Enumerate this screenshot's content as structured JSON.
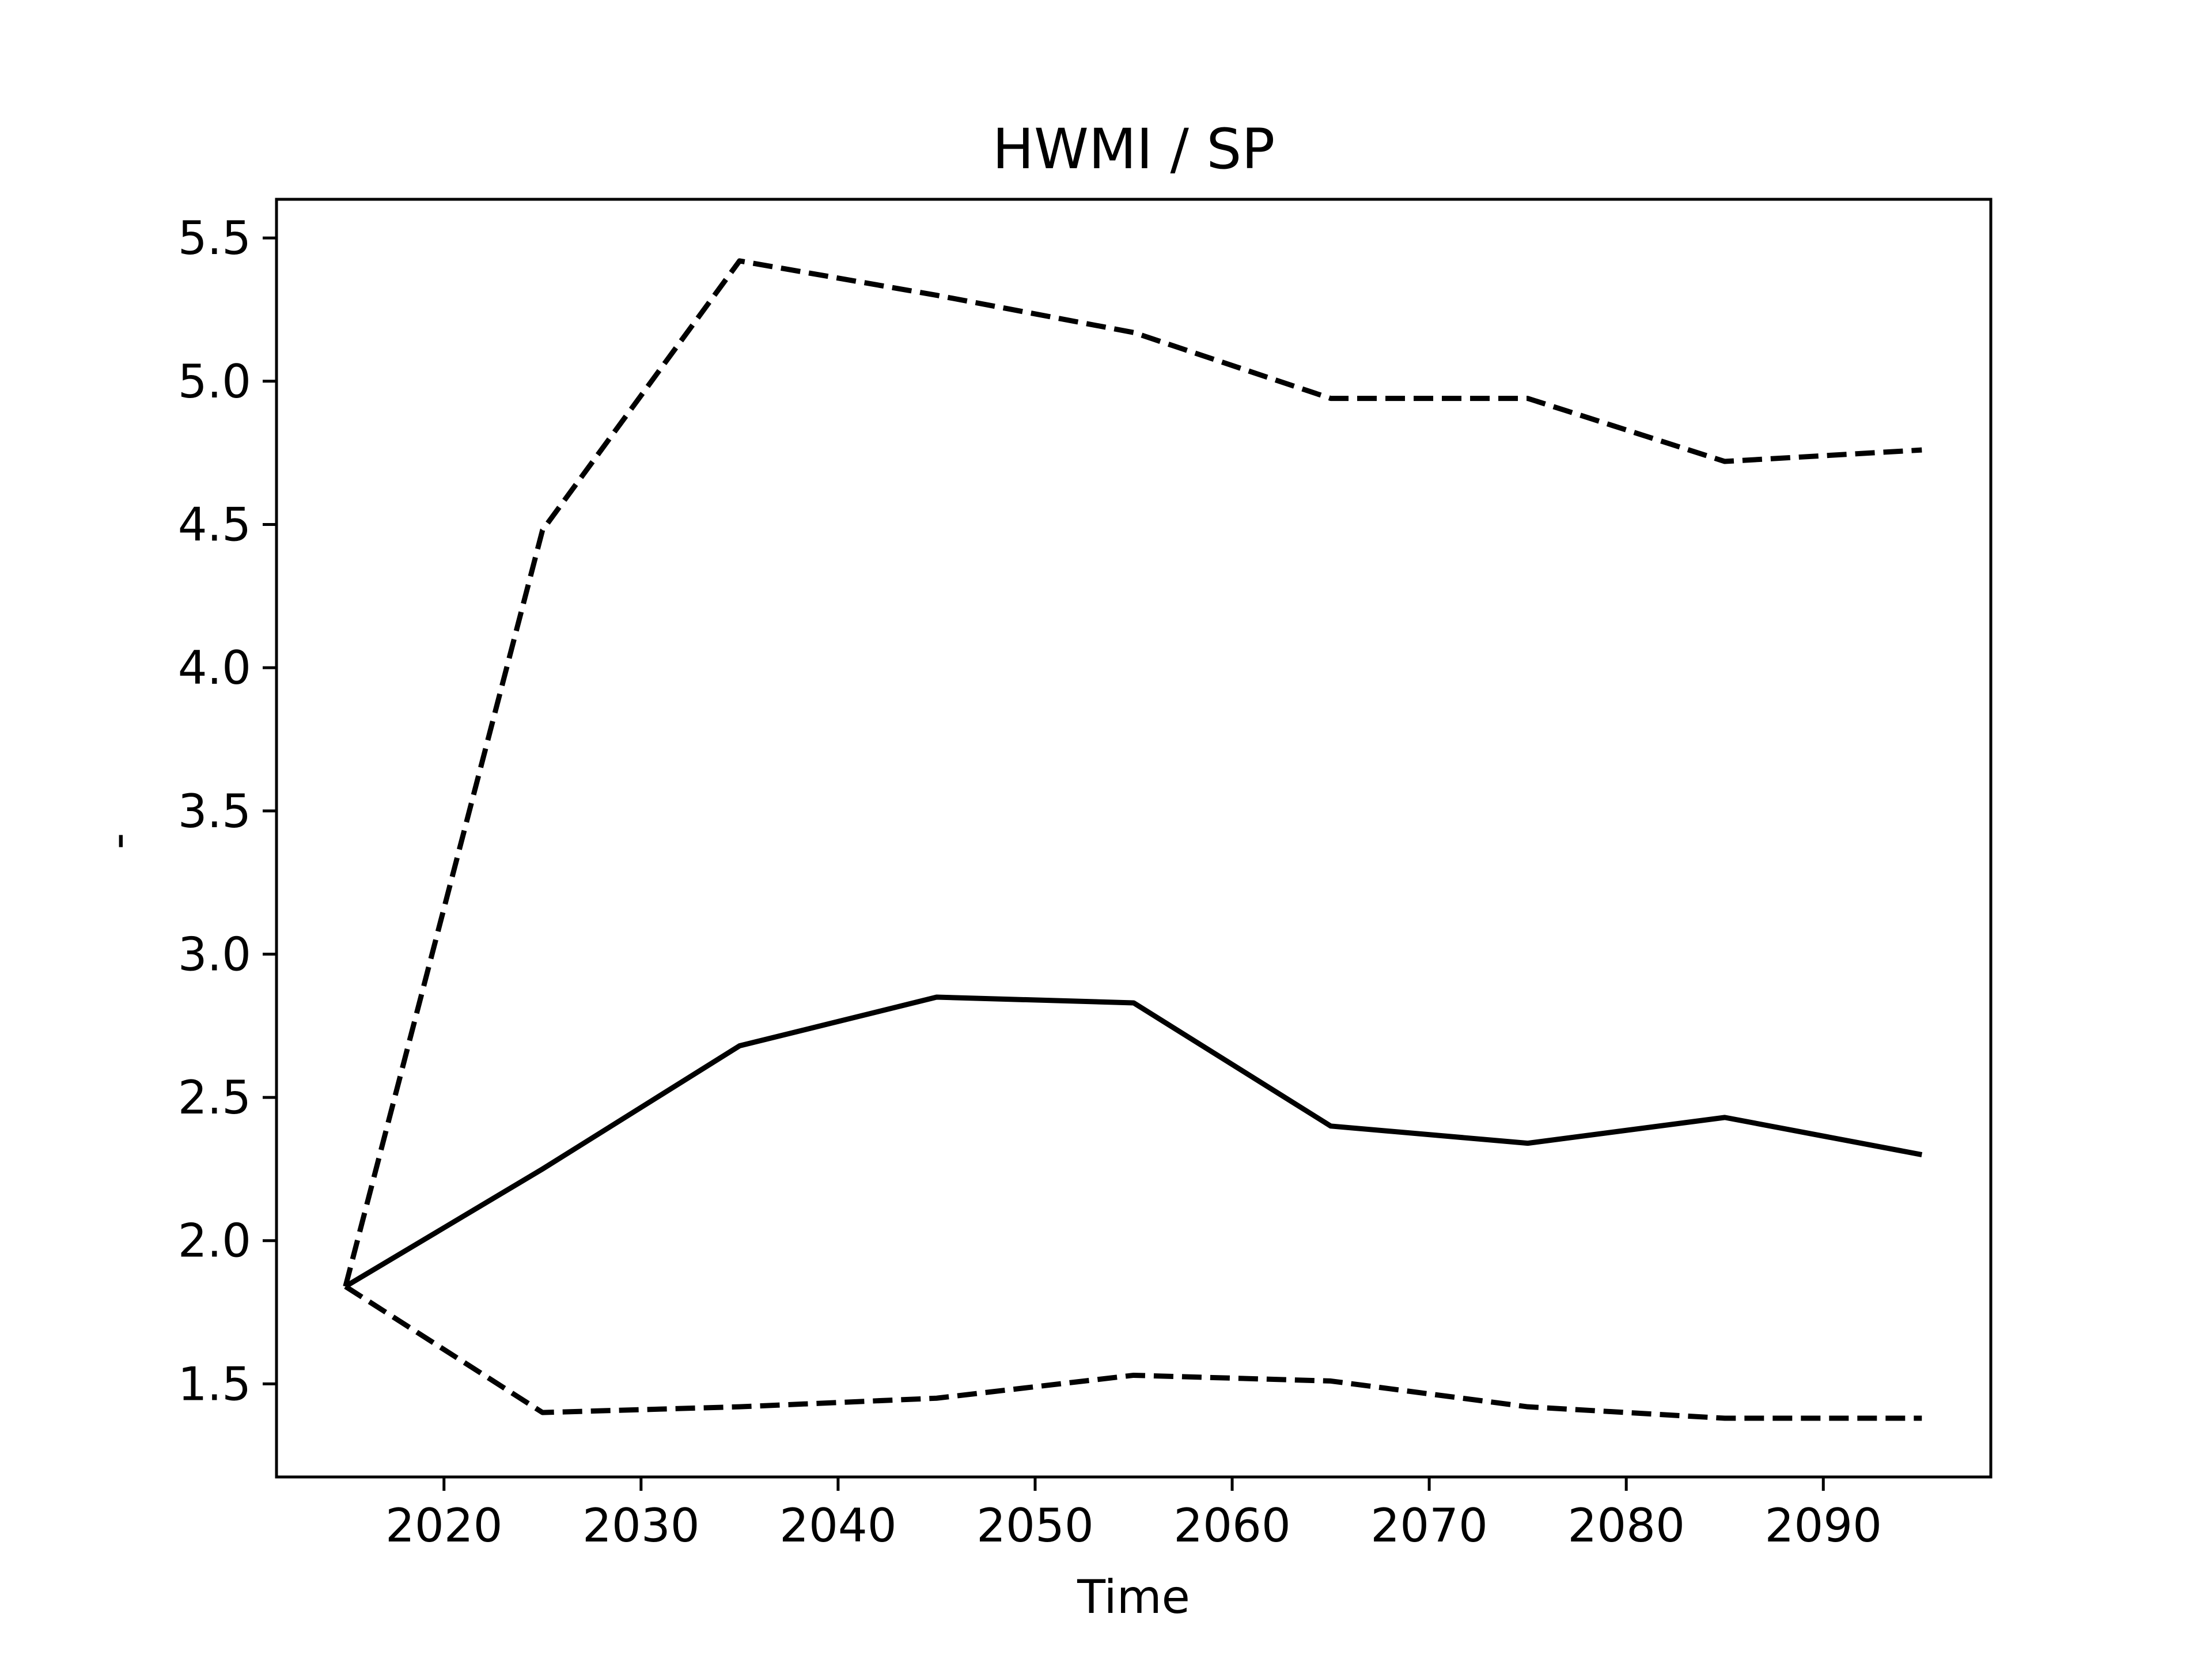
{
  "chart_data": {
    "type": "line",
    "title": "HWMI / SP",
    "xlabel": "Time",
    "ylabel": "-",
    "xlim": [
      2011.5,
      2098.5
    ],
    "ylim": [
      1.175,
      5.635
    ],
    "grid": false,
    "legend": "none",
    "x": [
      2015,
      2025,
      2035,
      2045,
      2055,
      2065,
      2075,
      2085,
      2095
    ],
    "x_ticks": [
      2020,
      2030,
      2040,
      2050,
      2060,
      2070,
      2080,
      2090
    ],
    "y_ticks": [
      1.5,
      2.0,
      2.5,
      3.0,
      3.5,
      4.0,
      4.5,
      5.0,
      5.5
    ],
    "series": [
      {
        "style": "solid",
        "color": "#000000",
        "values": [
          1.84,
          2.25,
          2.68,
          2.85,
          2.83,
          2.4,
          2.34,
          2.43,
          2.3
        ]
      },
      {
        "style": "dashed",
        "color": "#000000",
        "values": [
          1.84,
          4.48,
          5.42,
          5.3,
          5.17,
          4.94,
          4.94,
          4.72,
          4.76
        ]
      },
      {
        "style": "dashed",
        "color": "#000000",
        "values": [
          1.84,
          1.4,
          1.42,
          1.45,
          1.53,
          1.51,
          1.42,
          1.38,
          1.38
        ]
      }
    ]
  }
}
